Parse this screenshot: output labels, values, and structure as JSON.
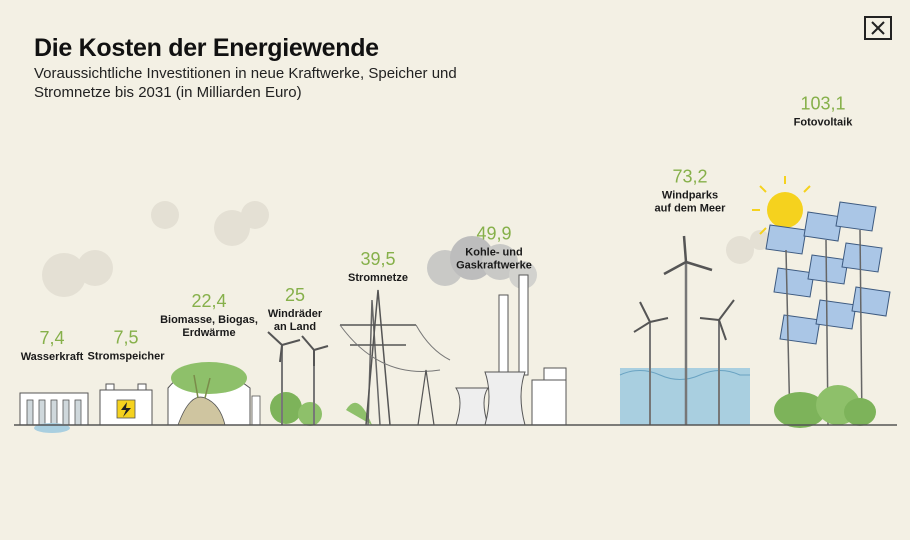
{
  "header": {
    "title": "Die Kosten der Energiewende",
    "subtitle": "Voraussichtliche Investitionen in neue Kraftwerke, Speicher und Stromnetze bis 2031 (in Milliarden Euro)",
    "close_icon": "close-icon"
  },
  "colors": {
    "background": "#f3f0e4",
    "value_text": "#86b04a",
    "ground_line": "#555555",
    "vegetation": "#7db35a",
    "water": "#a9cfe0",
    "smoke": "#bdbdbd"
  },
  "chart_data": {
    "type": "pictorial-bar",
    "title": "Die Kosten der Energiewende",
    "subtitle": "Voraussichtliche Investitionen in neue Kraftwerke, Speicher und Stromnetze bis 2031 (in Milliarden Euro)",
    "unit": "Milliarden Euro",
    "categories": [
      [
        "Wasserkraft"
      ],
      [
        "Stromspeicher"
      ],
      [
        "Biomasse, Biogas,",
        "Erdwärme"
      ],
      [
        "Windräder",
        "an Land"
      ],
      [
        "Stromnetze"
      ],
      [
        "Kohle- und",
        "Gaskraftwerke"
      ],
      [
        "Windparks",
        "auf dem Meer"
      ],
      [
        "Fotovoltaik"
      ]
    ],
    "values": [
      7.4,
      7.5,
      22.4,
      25,
      39.5,
      49.9,
      73.2,
      103.1
    ],
    "value_labels": [
      "7,4",
      "7,5",
      "22,4",
      "25",
      "39,5",
      "49,9",
      "73,2",
      "103,1"
    ],
    "icons": [
      "hydro-dam-icon",
      "battery-icon",
      "biogas-plant-icon",
      "wind-turbine-icon",
      "power-pylon-icon",
      "power-plant-icon",
      "offshore-wind-icon",
      "solar-panel-icon"
    ]
  }
}
